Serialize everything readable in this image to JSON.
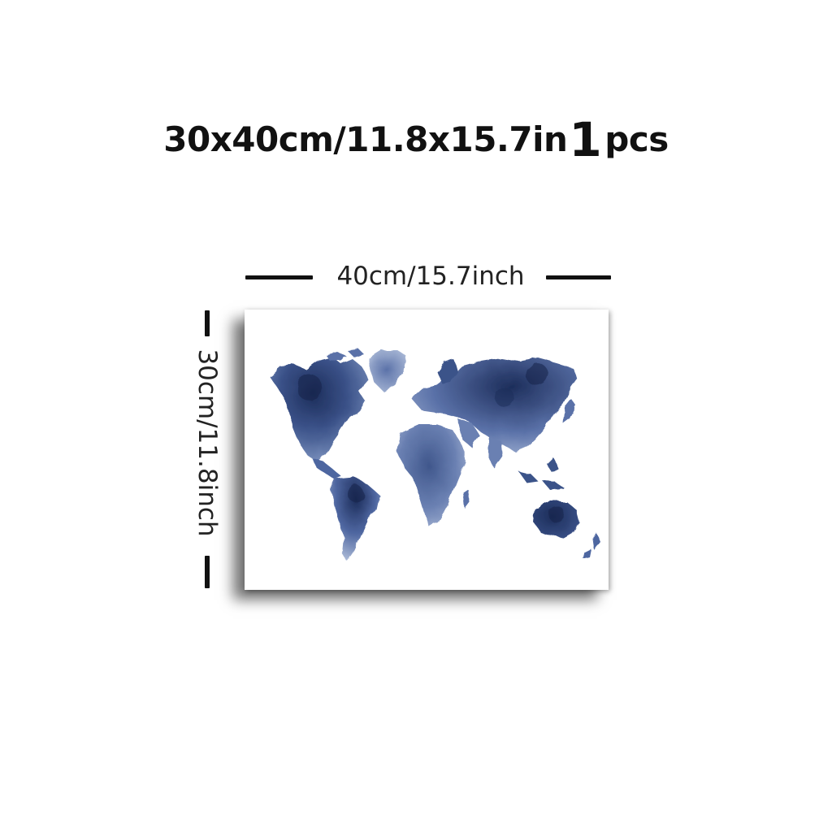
{
  "header": {
    "size_text": "30x40cm/11.8x15.7in",
    "quantity": "1",
    "quantity_unit": "pcs"
  },
  "dimensions": {
    "width_label": "40cm/15.7inch",
    "height_label": "30cm/11.8inch"
  },
  "artwork": {
    "subject": "watercolor world map",
    "ink_colors": [
      "#1c2d5a",
      "#3b5289",
      "#6a80b2",
      "#a9b8d6"
    ],
    "background_color": "#ffffff"
  }
}
